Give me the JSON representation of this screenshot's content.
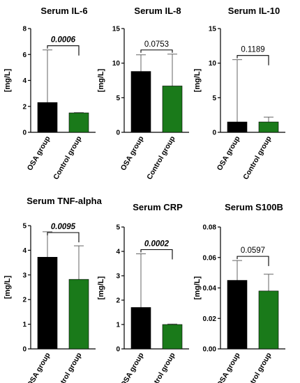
{
  "chart_data": [
    {
      "type": "bar",
      "title": "Serum IL-6",
      "ylabel": "[mg/L]",
      "categories": [
        "OSA group",
        "Control group"
      ],
      "values": [
        2.3,
        1.5
      ],
      "error_upper": [
        6.35,
        1.52
      ],
      "ylim": [
        0,
        8
      ],
      "yticks": [
        "0",
        "2",
        "4",
        "6",
        "8"
      ],
      "p_value": "0.0006",
      "significant": true,
      "colors": [
        "#000000",
        "#1a7a1a"
      ]
    },
    {
      "type": "bar",
      "title": "Serum IL-8",
      "ylabel": "[mg/L]",
      "categories": [
        "OSA group",
        "Control group"
      ],
      "values": [
        8.8,
        6.7
      ],
      "error_upper": [
        11.2,
        11.3
      ],
      "ylim": [
        0,
        15
      ],
      "yticks": [
        "0",
        "5",
        "10",
        "15"
      ],
      "p_value": "0.0753",
      "significant": false,
      "colors": [
        "#000000",
        "#1a7a1a"
      ]
    },
    {
      "type": "bar",
      "title": "Serum IL-10",
      "ylabel": "[mg/L]",
      "categories": [
        "OSA group",
        "Control group"
      ],
      "values": [
        1.5,
        1.5
      ],
      "error_upper": [
        10.5,
        2.2
      ],
      "ylim": [
        0,
        15
      ],
      "yticks": [
        "0",
        "5",
        "10",
        "15"
      ],
      "p_value": "0.1189",
      "significant": false,
      "colors": [
        "#000000",
        "#1a7a1a"
      ]
    },
    {
      "type": "bar",
      "title": "Serum TNF-alpha",
      "ylabel": "[mg/L]",
      "categories": [
        "OSA group",
        "Control group"
      ],
      "values": [
        3.72,
        2.82
      ],
      "error_upper": [
        4.75,
        4.18
      ],
      "ylim": [
        0,
        5
      ],
      "yticks": [
        "0",
        "1",
        "2",
        "3",
        "4",
        "5"
      ],
      "p_value": "0.0095",
      "significant": true,
      "colors": [
        "#000000",
        "#1a7a1a"
      ]
    },
    {
      "type": "bar",
      "title": "Serum CRP",
      "ylabel": "[mg/L]",
      "categories": [
        "OSA group",
        "Control group"
      ],
      "values": [
        1.7,
        1.0
      ],
      "error_upper": [
        3.9,
        1.02
      ],
      "ylim": [
        0,
        5
      ],
      "yticks": [
        "0",
        "1",
        "2",
        "3",
        "4",
        "5"
      ],
      "p_value": "0.0002",
      "significant": true,
      "colors": [
        "#000000",
        "#1a7a1a"
      ]
    },
    {
      "type": "bar",
      "title": "Serum S100B",
      "ylabel": "[mg/L]",
      "categories": [
        "OSA group",
        "Control group"
      ],
      "values": [
        0.045,
        0.038
      ],
      "error_upper": [
        0.058,
        0.049
      ],
      "ylim": [
        0,
        0.08
      ],
      "yticks": [
        "0.00",
        "0.02",
        "0.04",
        "0.06",
        "0.08"
      ],
      "p_value": "0.0597",
      "significant": false,
      "colors": [
        "#000000",
        "#1a7a1a"
      ]
    }
  ]
}
